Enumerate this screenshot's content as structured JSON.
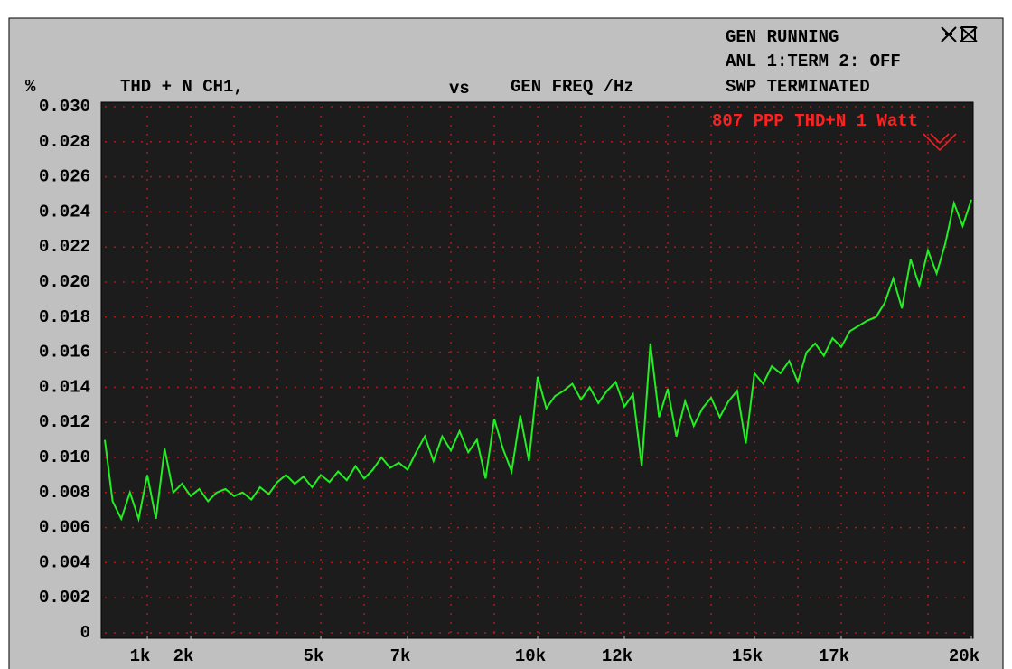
{
  "chart_data": {
    "type": "line",
    "y_unit": "%",
    "title": "THD + N CH1,",
    "vs": "vs",
    "x_label": "GEN FREQ /Hz",
    "status": [
      "GEN RUNNING",
      "ANL 1:TERM 2: OFF",
      "SWP TERMINATED"
    ],
    "annotation": "807 PPP THD+N 1 Watt",
    "xlim": [
      20,
      20000
    ],
    "ylim": [
      0,
      0.03
    ],
    "xticks": [
      {
        "value": 1000,
        "label": "1k"
      },
      {
        "value": 2000,
        "label": "2k"
      },
      {
        "value": 5000,
        "label": "5k"
      },
      {
        "value": 7000,
        "label": "7k"
      },
      {
        "value": 10000,
        "label": "10k"
      },
      {
        "value": 12000,
        "label": "12k"
      },
      {
        "value": 15000,
        "label": "15k"
      },
      {
        "value": 17000,
        "label": "17k"
      },
      {
        "value": 20000,
        "label": "20k"
      }
    ],
    "x_grid": [
      1000,
      2000,
      3000,
      4000,
      5000,
      6000,
      7000,
      8000,
      9000,
      10000,
      11000,
      12000,
      13000,
      14000,
      15000,
      16000,
      17000,
      18000,
      19000
    ],
    "yticks": [
      0,
      0.002,
      0.004,
      0.006,
      0.008,
      {
        "value": 0.01,
        "label": "0.010"
      },
      0.012,
      0.014,
      0.016,
      0.018,
      {
        "value": 0.02,
        "label": "0.020"
      },
      0.022,
      0.024,
      0.026,
      0.028,
      {
        "value": 0.03,
        "label": "0.030"
      }
    ],
    "grid": true,
    "x": [
      20,
      200,
      400,
      600,
      800,
      1000,
      1200,
      1400,
      1600,
      1800,
      2000,
      2200,
      2400,
      2600,
      2800,
      3000,
      3200,
      3400,
      3600,
      3800,
      4000,
      4200,
      4400,
      4600,
      4800,
      5000,
      5200,
      5400,
      5600,
      5800,
      6000,
      6200,
      6400,
      6600,
      6800,
      7000,
      7200,
      7400,
      7600,
      7800,
      8000,
      8200,
      8400,
      8600,
      8800,
      9000,
      9200,
      9400,
      9600,
      9800,
      10000,
      10200,
      10400,
      10600,
      10800,
      11000,
      11200,
      11400,
      11600,
      11800,
      12000,
      12200,
      12400,
      12600,
      12800,
      13000,
      13200,
      13400,
      13600,
      13800,
      14000,
      14200,
      14400,
      14600,
      14800,
      15000,
      15200,
      15400,
      15600,
      15800,
      16000,
      16200,
      16400,
      16600,
      16800,
      17000,
      17200,
      17400,
      17600,
      17800,
      18000,
      18200,
      18400,
      18600,
      18800,
      19000,
      19200,
      19400,
      19600,
      19800,
      20000
    ],
    "series": [
      {
        "color": "#22ee22",
        "values": [
          0.011,
          0.0075,
          0.0065,
          0.008,
          0.0065,
          0.009,
          0.0065,
          0.0105,
          0.008,
          0.0085,
          0.0078,
          0.0082,
          0.0075,
          0.008,
          0.0082,
          0.0078,
          0.008,
          0.0076,
          0.0083,
          0.0079,
          0.0086,
          0.009,
          0.0085,
          0.0089,
          0.0083,
          0.009,
          0.0086,
          0.0092,
          0.0087,
          0.0095,
          0.0088,
          0.0093,
          0.01,
          0.0094,
          0.0097,
          0.0093,
          0.0103,
          0.0112,
          0.0098,
          0.0112,
          0.0104,
          0.0115,
          0.0103,
          0.011,
          0.0088,
          0.0122,
          0.0105,
          0.0092,
          0.0124,
          0.0098,
          0.0146,
          0.0128,
          0.0135,
          0.0138,
          0.0142,
          0.0133,
          0.014,
          0.0131,
          0.0138,
          0.0143,
          0.0129,
          0.0136,
          0.0095,
          0.0165,
          0.0123,
          0.0139,
          0.0112,
          0.0132,
          0.0118,
          0.0128,
          0.0134,
          0.0123,
          0.0132,
          0.0138,
          0.0108,
          0.0148,
          0.0142,
          0.0152,
          0.0148,
          0.0155,
          0.0143,
          0.016,
          0.0165,
          0.0158,
          0.0168,
          0.0163,
          0.0172,
          0.0175,
          0.0178,
          0.018,
          0.0188,
          0.0202,
          0.0185,
          0.0213,
          0.0198,
          0.0218,
          0.0205,
          0.0222,
          0.0245,
          0.0232,
          0.0247
        ]
      }
    ]
  }
}
